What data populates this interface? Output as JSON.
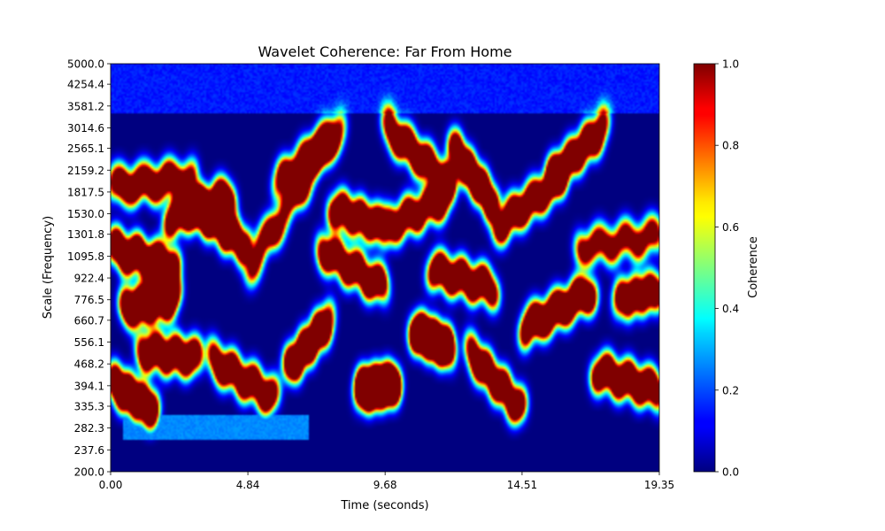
{
  "chart_data": {
    "type": "heatmap",
    "title": "Wavelet Coherence: Far From Home",
    "xlabel": "Time (seconds)",
    "ylabel": "Scale (Frequency)",
    "xlim": [
      0,
      19.35
    ],
    "ylim": [
      200.0,
      5000.0
    ],
    "y_scale": "log",
    "x_ticks": [
      "0.00",
      "4.84",
      "9.68",
      "14.51",
      "19.35"
    ],
    "x_tick_values": [
      0.0,
      4.84,
      9.68,
      14.51,
      19.35
    ],
    "y_ticks": [
      "200.0",
      "237.6",
      "282.3",
      "335.3",
      "394.1",
      "468.2",
      "556.1",
      "660.7",
      "776.5",
      "922.4",
      "1095.8",
      "1301.8",
      "1530.0",
      "1817.5",
      "2159.2",
      "2565.1",
      "3014.6",
      "3581.2",
      "4254.4",
      "5000.0"
    ],
    "y_tick_values": [
      200.0,
      237.6,
      282.3,
      335.3,
      394.1,
      468.2,
      556.1,
      660.7,
      776.5,
      922.4,
      1095.8,
      1301.8,
      1530.0,
      1817.5,
      2159.2,
      2565.1,
      3014.6,
      3581.2,
      4254.4,
      5000.0
    ],
    "colormap": "jet",
    "colorbar": {
      "label": "Coherence",
      "range": [
        0,
        1
      ],
      "ticks": [
        "0.0",
        "0.2",
        "0.4",
        "0.6",
        "0.8",
        "1.0"
      ],
      "tick_values": [
        0.0,
        0.2,
        0.4,
        0.6,
        0.8,
        1.0
      ]
    },
    "grid": false
  }
}
